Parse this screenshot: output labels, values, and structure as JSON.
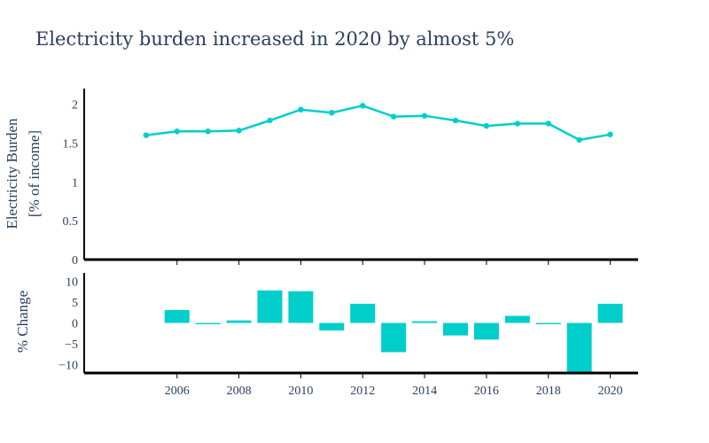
{
  "chart_data": {
    "type": "line+bar",
    "title": "Electricity burden increased in 2020 by almost 5%",
    "accent_color": "#00cecb",
    "x": [
      2005,
      2006,
      2007,
      2008,
      2009,
      2010,
      2011,
      2012,
      2013,
      2014,
      2015,
      2016,
      2017,
      2018,
      2019,
      2020
    ],
    "xlim": [
      2003.0,
      2020.9
    ],
    "xticks": [
      2006,
      2008,
      2010,
      2012,
      2014,
      2016,
      2018,
      2020
    ],
    "panels": [
      {
        "type": "line",
        "ylabel_line1": "Electricity Burden",
        "ylabel_line2": "[% of income]",
        "ylim": [
          0,
          2.2
        ],
        "yticks": [
          0,
          0.5,
          1,
          1.5,
          2
        ],
        "ytick_labels": [
          "0",
          "0.5",
          "1",
          "1.5",
          "2"
        ],
        "values": [
          1.6,
          1.65,
          1.65,
          1.66,
          1.79,
          1.93,
          1.89,
          1.98,
          1.84,
          1.85,
          1.79,
          1.72,
          1.75,
          1.75,
          1.54,
          1.61
        ]
      },
      {
        "type": "bar",
        "ylabel": "% Change",
        "ylim": [
          -12,
          12
        ],
        "yticks": [
          10,
          5,
          0,
          -5,
          -10
        ],
        "ytick_labels": [
          "10",
          "5",
          "0",
          "−5",
          "−10"
        ],
        "values": [
          3.1,
          -0.3,
          0.6,
          7.8,
          7.6,
          -1.8,
          4.6,
          -7.0,
          0.4,
          -3.0,
          -4.0,
          1.7,
          -0.3,
          -11.9,
          4.6
        ]
      }
    ]
  }
}
